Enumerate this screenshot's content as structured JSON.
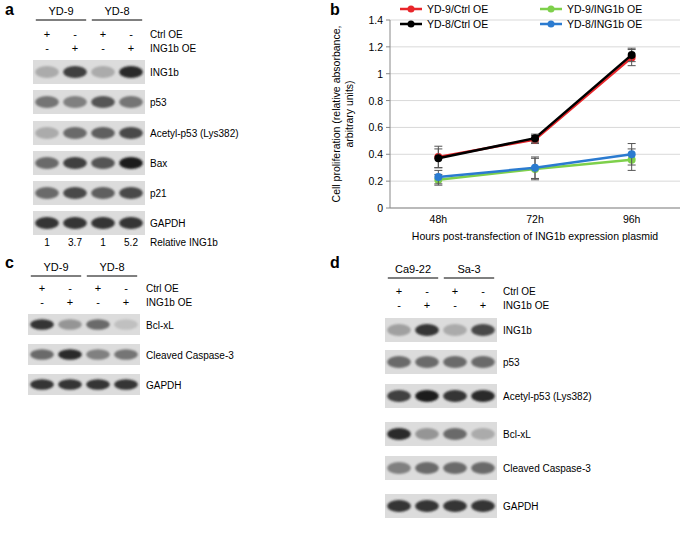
{
  "chart_data": {
    "type": "line",
    "panel_label": "b",
    "xlabel": "Hours post-transfection of ING1b expression plasmid",
    "ylabel": "Cell proliferation (relative absorbance, arbitrary units)",
    "categories": [
      "48h",
      "72h",
      "96h"
    ],
    "ylim": [
      0,
      1.4
    ],
    "yticks": [
      0,
      0.2,
      0.4,
      0.6,
      0.8,
      1,
      1.2,
      1.4
    ],
    "grid": true,
    "legend": "top",
    "marker": "circle",
    "series": [
      {
        "name": "YD-9/Ctrl OE",
        "color": "#e8262b",
        "values": [
          0.38,
          0.51,
          1.12
        ],
        "errors": [
          0.08,
          0.03,
          0.06
        ]
      },
      {
        "name": "YD-9/ING1b OE",
        "color": "#7ed04b",
        "values": [
          0.21,
          0.29,
          0.36
        ],
        "errors": [
          0.04,
          0.08,
          0.08
        ]
      },
      {
        "name": "YD-8/Ctrl OE",
        "color": "#000000",
        "values": [
          0.37,
          0.52,
          1.14
        ],
        "errors": [
          0.07,
          0.03,
          0.05
        ]
      },
      {
        "name": "YD-8/ING1b OE",
        "color": "#2b7bd0",
        "values": [
          0.23,
          0.3,
          0.4
        ],
        "errors": [
          0.05,
          0.08,
          0.08
        ]
      }
    ]
  },
  "blots": [
    {
      "panel_label": "a",
      "groups": [
        "YD-9",
        "YD-8"
      ],
      "conditions": [
        {
          "label": "Ctrl OE",
          "signs": [
            "+",
            "-",
            "+",
            "-"
          ]
        },
        {
          "label": "ING1b OE",
          "signs": [
            "-",
            "+",
            "-",
            "+"
          ]
        }
      ],
      "rows": [
        {
          "label": "ING1b",
          "band_intensity": [
            0.3,
            0.8,
            0.3,
            0.9
          ]
        },
        {
          "label": "p53",
          "band_intensity": [
            0.55,
            0.5,
            0.7,
            0.55
          ]
        },
        {
          "label": "Acetyl-p53 (Lys382)",
          "band_intensity": [
            0.3,
            0.6,
            0.65,
            0.75
          ]
        },
        {
          "label": "Bax",
          "band_intensity": [
            0.6,
            0.8,
            0.7,
            0.95
          ]
        },
        {
          "label": "p21",
          "band_intensity": [
            0.6,
            0.75,
            0.65,
            0.75
          ]
        },
        {
          "label": "GAPDH",
          "band_intensity": [
            0.85,
            0.85,
            0.85,
            0.85
          ]
        }
      ],
      "quantification": {
        "label": "Relative ING1b",
        "values": [
          1,
          3.7,
          1,
          5.2
        ]
      }
    },
    {
      "panel_label": "c",
      "groups": [
        "YD-9",
        "YD-8"
      ],
      "conditions": [
        {
          "label": "Ctrl OE",
          "signs": [
            "+",
            "-",
            "+",
            "-"
          ]
        },
        {
          "label": "ING1b OE",
          "signs": [
            "-",
            "+",
            "-",
            "+"
          ]
        }
      ],
      "rows": [
        {
          "label": "Bcl-xL",
          "band_intensity": [
            0.85,
            0.4,
            0.6,
            0.2
          ]
        },
        {
          "label": "Cleaved Caspase-3",
          "band_intensity": [
            0.6,
            0.9,
            0.5,
            0.55
          ]
        },
        {
          "label": "GAPDH",
          "band_intensity": [
            0.85,
            0.85,
            0.85,
            0.85
          ]
        }
      ]
    },
    {
      "panel_label": "d",
      "groups": [
        "Ca9-22",
        "Sa-3"
      ],
      "conditions": [
        {
          "label": "Ctrl OE",
          "signs": [
            "+",
            "-",
            "+",
            "-"
          ]
        },
        {
          "label": "ING1b OE",
          "signs": [
            "-",
            "+",
            "-",
            "+"
          ]
        }
      ],
      "rows": [
        {
          "label": "ING1b",
          "band_intensity": [
            0.35,
            0.85,
            0.3,
            0.75
          ]
        },
        {
          "label": "p53",
          "band_intensity": [
            0.6,
            0.6,
            0.6,
            0.6
          ]
        },
        {
          "label": "Acetyl-p53 (Lys382)",
          "band_intensity": [
            0.8,
            0.95,
            0.85,
            0.9
          ]
        },
        {
          "label": "Bcl-xL",
          "band_intensity": [
            0.9,
            0.4,
            0.6,
            0.3
          ]
        },
        {
          "label": "Cleaved Caspase-3",
          "band_intensity": [
            0.5,
            0.6,
            0.6,
            0.6
          ]
        },
        {
          "label": "GAPDH",
          "band_intensity": [
            0.85,
            0.85,
            0.85,
            0.85
          ]
        }
      ]
    }
  ]
}
